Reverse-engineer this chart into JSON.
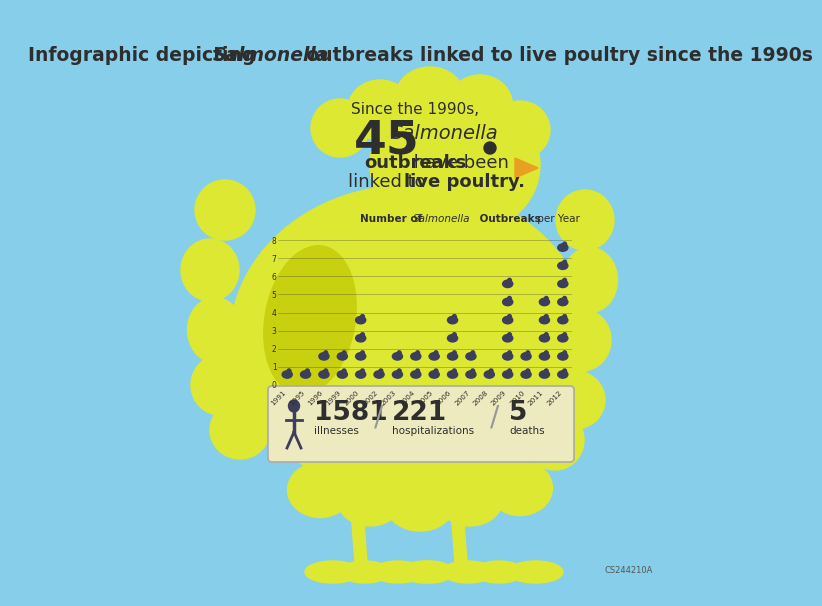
{
  "bg_color": "#87ceeb",
  "chick_color": "#dde832",
  "chick_dark": "#c8d010",
  "dark_color": "#2e2e2e",
  "marker_color": "#3d3d5c",
  "box_color": "#eeeac0",
  "box_edge": "#aaaaaa",
  "years": [
    "1991",
    "1995",
    "1996",
    "1999",
    "2000",
    "2002",
    "2003",
    "2004",
    "2005",
    "2006",
    "2007",
    "2008",
    "2009",
    "2010",
    "2011",
    "2012"
  ],
  "values": [
    1,
    1,
    2,
    2,
    4,
    1,
    2,
    2,
    2,
    4,
    2,
    1,
    6,
    2,
    5,
    8
  ],
  "illnesses": "1581",
  "hospitalizations": "221",
  "deaths": "5",
  "footnote": "CS244210A",
  "max_val": 8,
  "title1": "Infographic depicting ",
  "title2": "Salmonella",
  "title3": " outbreaks linked to live poultry since the 1990s"
}
